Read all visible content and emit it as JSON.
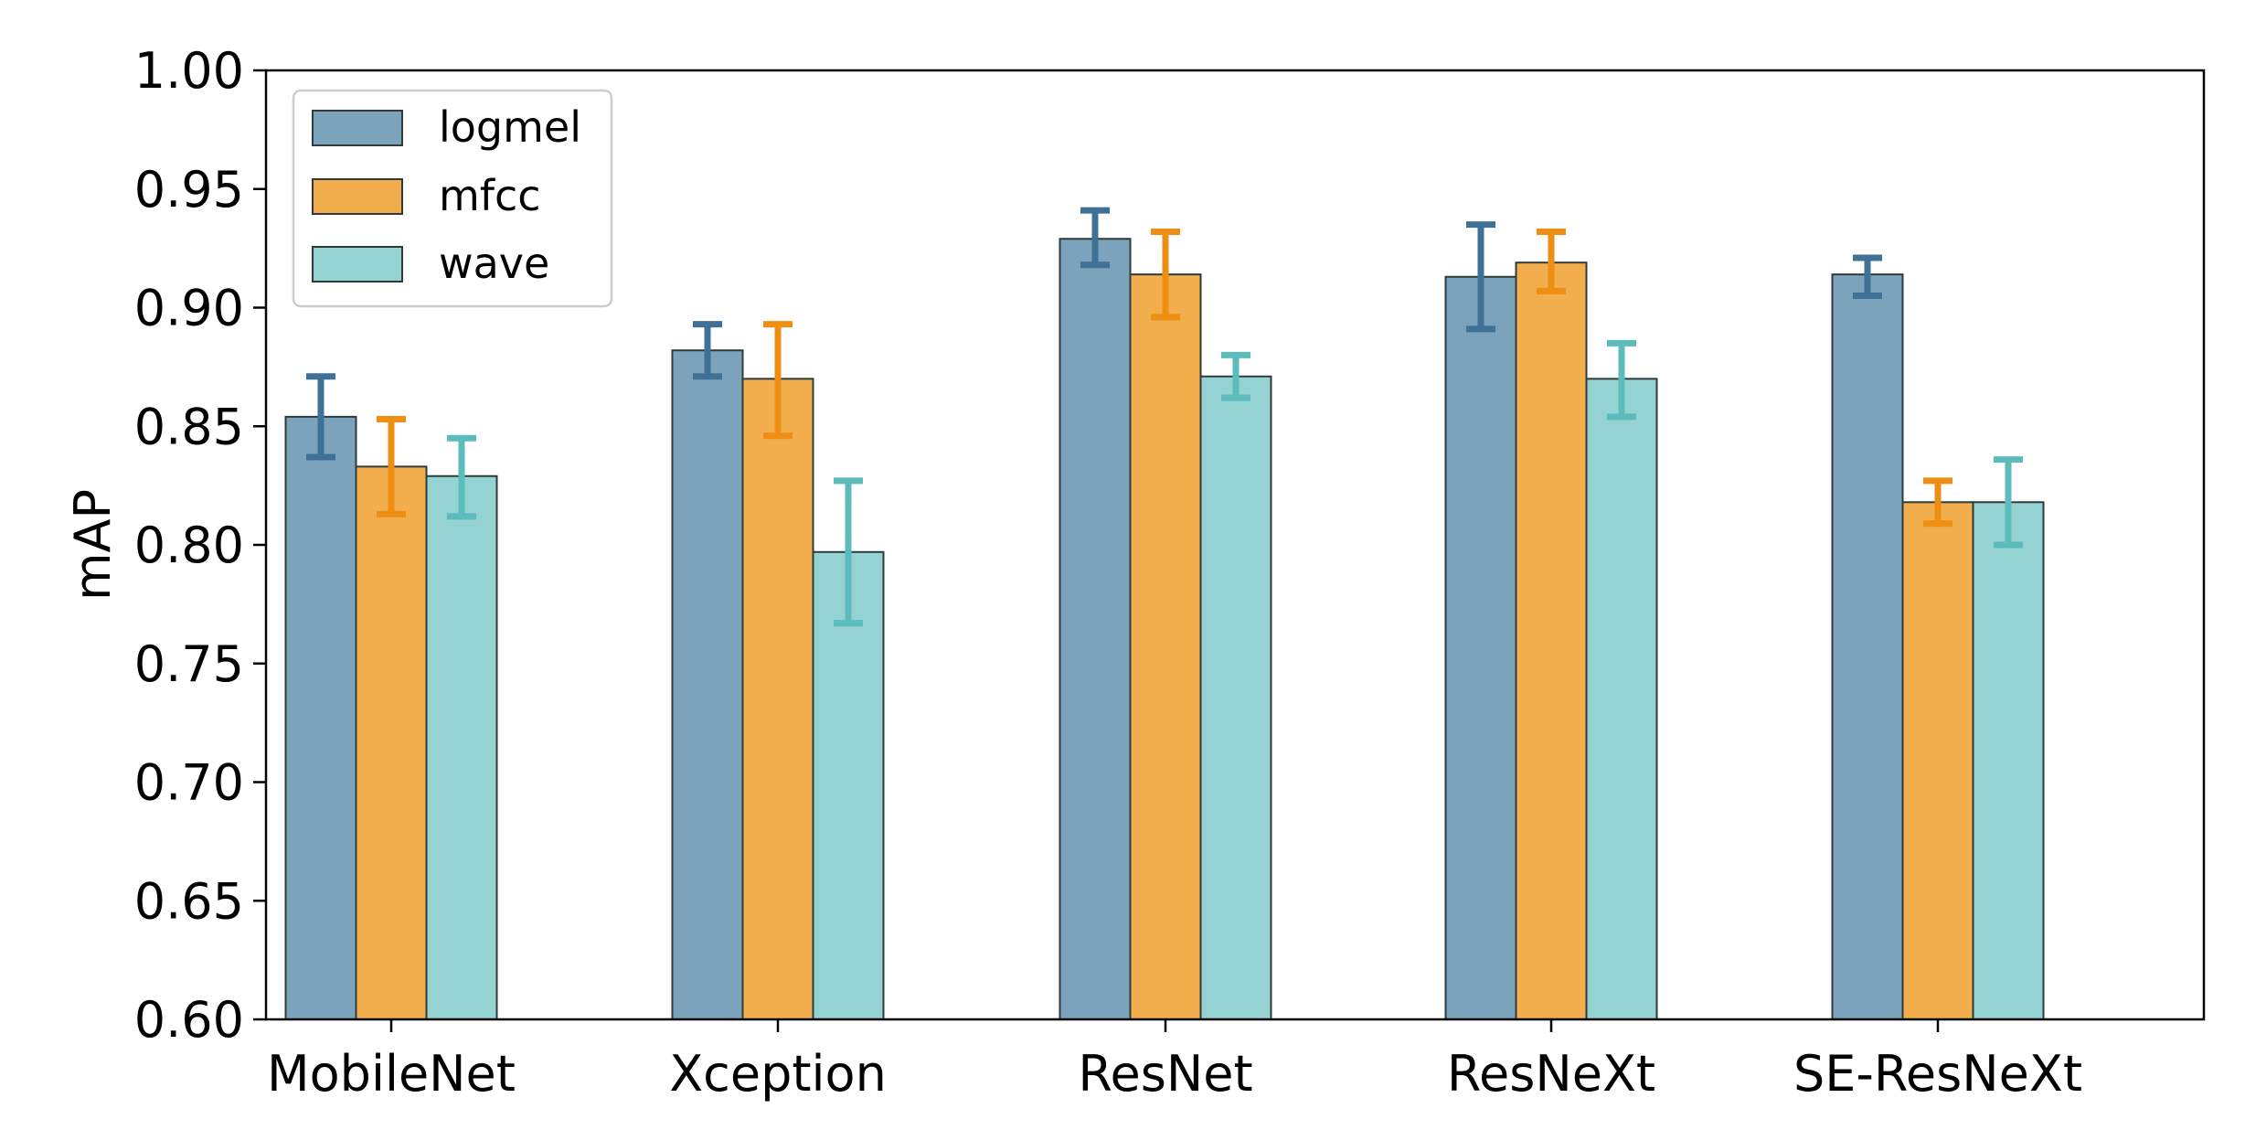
{
  "chart_data": {
    "type": "bar",
    "title": "",
    "xlabel": "",
    "ylabel": "mAP",
    "ylim": [
      0.6,
      1.0
    ],
    "yticks": [
      "0.60",
      "0.65",
      "0.70",
      "0.75",
      "0.80",
      "0.85",
      "0.90",
      "0.95",
      "1.00"
    ],
    "categories": [
      "MobileNet",
      "Xception",
      "ResNet",
      "ResNeXt",
      "SE-ResNeXt"
    ],
    "grid": false,
    "legend_position": "top-left",
    "series": [
      {
        "name": "logmel",
        "values": [
          0.854,
          0.882,
          0.929,
          0.913,
          0.914
        ],
        "err_low": [
          0.837,
          0.871,
          0.918,
          0.891,
          0.905
        ],
        "err_high": [
          0.871,
          0.893,
          0.941,
          0.935,
          0.921
        ],
        "color": "#7ba3bc",
        "error_color": "#3f7196"
      },
      {
        "name": "mfcc",
        "values": [
          0.833,
          0.87,
          0.914,
          0.919,
          0.818
        ],
        "err_low": [
          0.813,
          0.846,
          0.896,
          0.907,
          0.809
        ],
        "err_high": [
          0.853,
          0.893,
          0.932,
          0.932,
          0.827
        ],
        "color": "#f2ad4c",
        "error_color": "#ee8f14"
      },
      {
        "name": "wave",
        "values": [
          0.829,
          0.797,
          0.871,
          0.87,
          0.818
        ],
        "err_low": [
          0.812,
          0.767,
          0.862,
          0.854,
          0.8
        ],
        "err_high": [
          0.845,
          0.827,
          0.88,
          0.885,
          0.836
        ],
        "color": "#95d2d2",
        "error_color": "#5cbcbc"
      }
    ]
  }
}
